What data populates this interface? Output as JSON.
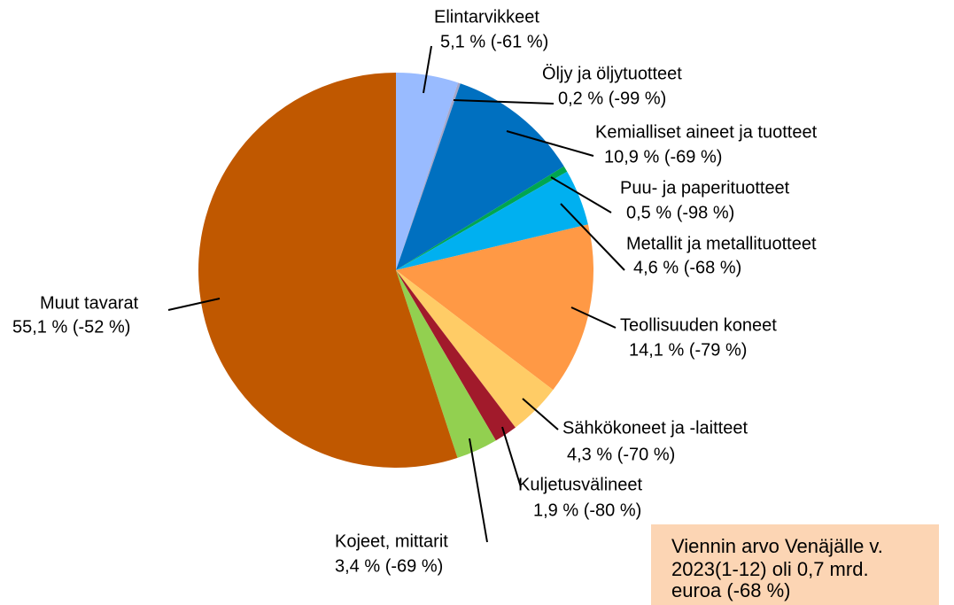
{
  "chart_data": {
    "type": "pie",
    "categories": [
      "Elintarvikkeet",
      "Öljy ja öljytuotteet",
      "Kemialliset aineet ja tuotteet",
      "Puu- ja paperituotteet",
      "Metallit ja metallituotteet",
      "Teollisuuden koneet",
      "Sähkökoneet ja -laitteet",
      "Kuljetusvälineet",
      "Kojeet, mittarit",
      "Muut tavarat"
    ],
    "values": [
      5.1,
      0.2,
      10.9,
      0.5,
      4.6,
      14.1,
      4.3,
      1.9,
      3.4,
      55.1
    ],
    "value_labels": [
      "5,1 % (-61 %)",
      "0,2 % (-99 %)",
      "10,9 % (-69 %)",
      "0,5 % (-98 %)",
      "4,6 % (-68 %)",
      "14,1 % (-79 %)",
      "4,3 % (-70 %)",
      "1,9 % (-80 %)",
      "3,4 % (-69 %)",
      "55,1 % (-52 %)"
    ],
    "colors": [
      "#99bbff",
      "#a6a6c8",
      "#0070c0",
      "#00a650",
      "#00b0f0",
      "#ff9945",
      "#ffcc66",
      "#a11a2b",
      "#92d050",
      "#c05800"
    ],
    "annotation": [
      "Viennin arvo Venäjälle v.",
      "2023(1-12) oli 0,7 mrd.",
      "euroa (-68 %)"
    ]
  }
}
